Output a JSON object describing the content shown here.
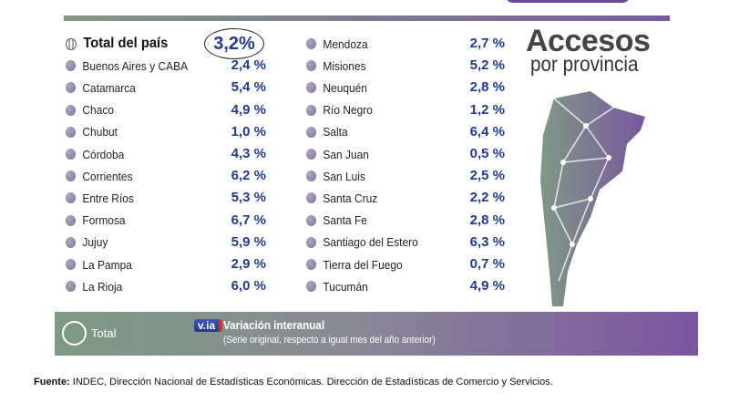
{
  "title": {
    "line1": "Accesos",
    "line2": "por provincia"
  },
  "total": {
    "label": "Total del país",
    "value": "3,2%"
  },
  "left": [
    {
      "name": "Buenos Aires y CABA",
      "value": "2,4 %"
    },
    {
      "name": "Catamarca",
      "value": "5,4 %"
    },
    {
      "name": "Chaco",
      "value": "4,9 %"
    },
    {
      "name": "Chubut",
      "value": "1,0 %"
    },
    {
      "name": "Córdoba",
      "value": "4,3 %"
    },
    {
      "name": "Corrientes",
      "value": "6,2 %"
    },
    {
      "name": "Entre Ríos",
      "value": "5,3 %"
    },
    {
      "name": "Formosa",
      "value": "6,7 %"
    },
    {
      "name": "Jujuy",
      "value": "5,9 %"
    },
    {
      "name": "La Pampa",
      "value": "2,9 %"
    },
    {
      "name": "La Rioja",
      "value": "6,0 %"
    }
  ],
  "right": [
    {
      "name": "Mendoza",
      "value": "2,7 %"
    },
    {
      "name": "Misiones",
      "value": "5,2 %"
    },
    {
      "name": "Neuquén",
      "value": "2,8 %"
    },
    {
      "name": "Río Negro",
      "value": "1,2 %"
    },
    {
      "name": "Salta",
      "value": "6,4 %"
    },
    {
      "name": "San Juan",
      "value": "0,5 %"
    },
    {
      "name": "San Luis",
      "value": "2,5 %"
    },
    {
      "name": "Santa Cruz",
      "value": "2,2 %"
    },
    {
      "name": "Santa Fe",
      "value": "2,8 %"
    },
    {
      "name": "Santiago del Estero",
      "value": "6,3 %"
    },
    {
      "name": "Tierra del Fuego",
      "value": "0,7 %"
    },
    {
      "name": "Tucumán",
      "value": "4,9 %"
    }
  ],
  "legend": {
    "total_label": "Total",
    "via_badge": "v.ia",
    "via_title": "Variación interanual",
    "via_subtitle": "(Serie original, respecto a igual mes del año anterior)"
  },
  "source": {
    "label": "Fuente:",
    "text": " INDEC, Dirección Nacional de Estadísticas Económicas. Dirección de Estadísticas de Comercio y Servicios."
  },
  "colors": {
    "value": "#243a8c",
    "band_start": "#7e9a84",
    "band_end": "#7a56a0"
  }
}
